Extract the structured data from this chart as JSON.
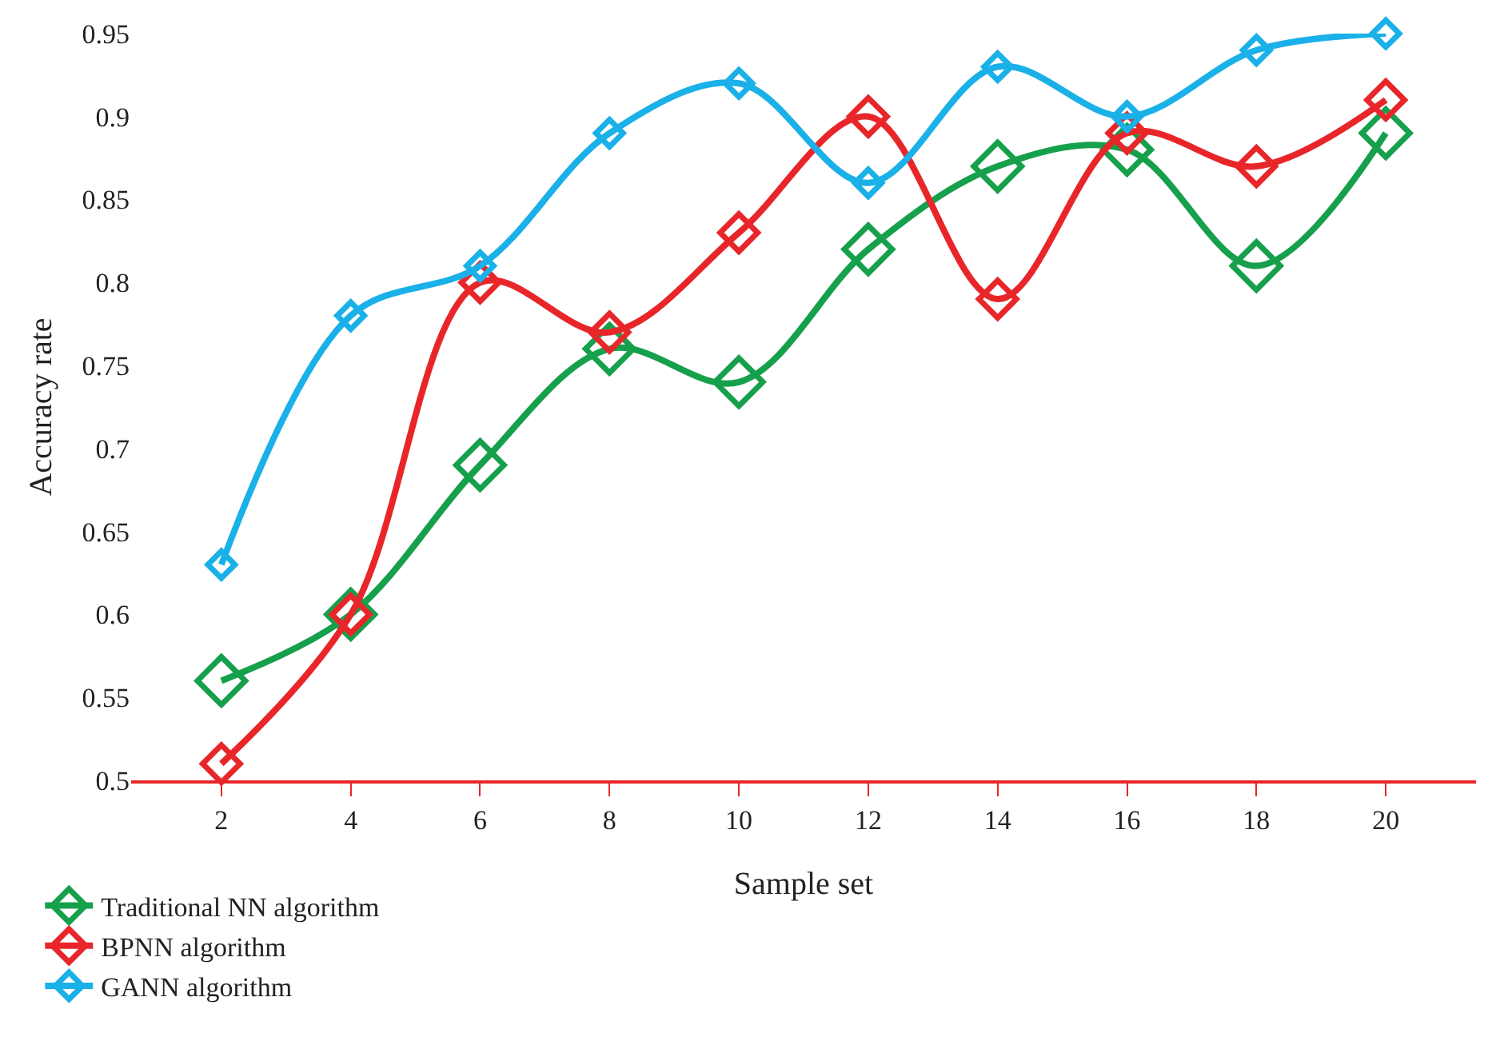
{
  "chart_data": {
    "type": "line",
    "xlabel": "Sample set",
    "ylabel": "Accuracy rate",
    "categories": [
      "2",
      "4",
      "6",
      "8",
      "10",
      "12",
      "14",
      "16",
      "18",
      "20"
    ],
    "series": [
      {
        "name": "Traditional NN algorithm",
        "color": "#16a04c",
        "values": [
          0.56,
          0.6,
          0.69,
          0.76,
          0.74,
          0.82,
          0.87,
          0.88,
          0.81,
          0.89
        ]
      },
      {
        "name": "BPNN algorithm",
        "color": "#e8262a",
        "values": [
          0.51,
          0.6,
          0.8,
          0.77,
          0.83,
          0.9,
          0.79,
          0.89,
          0.87,
          0.91
        ]
      },
      {
        "name": "GANN algorithm",
        "color": "#1ab0e8",
        "values": [
          0.63,
          0.78,
          0.81,
          0.89,
          0.92,
          0.86,
          0.93,
          0.9,
          0.94,
          0.95
        ]
      }
    ],
    "ylim": [
      0.5,
      0.95
    ],
    "yticks": [
      0.5,
      0.55,
      0.6,
      0.65,
      0.7,
      0.75,
      0.8,
      0.85,
      0.9,
      0.95
    ],
    "grid": false,
    "legend": "bottom left",
    "marker": "diamond",
    "line_style": "solid"
  }
}
